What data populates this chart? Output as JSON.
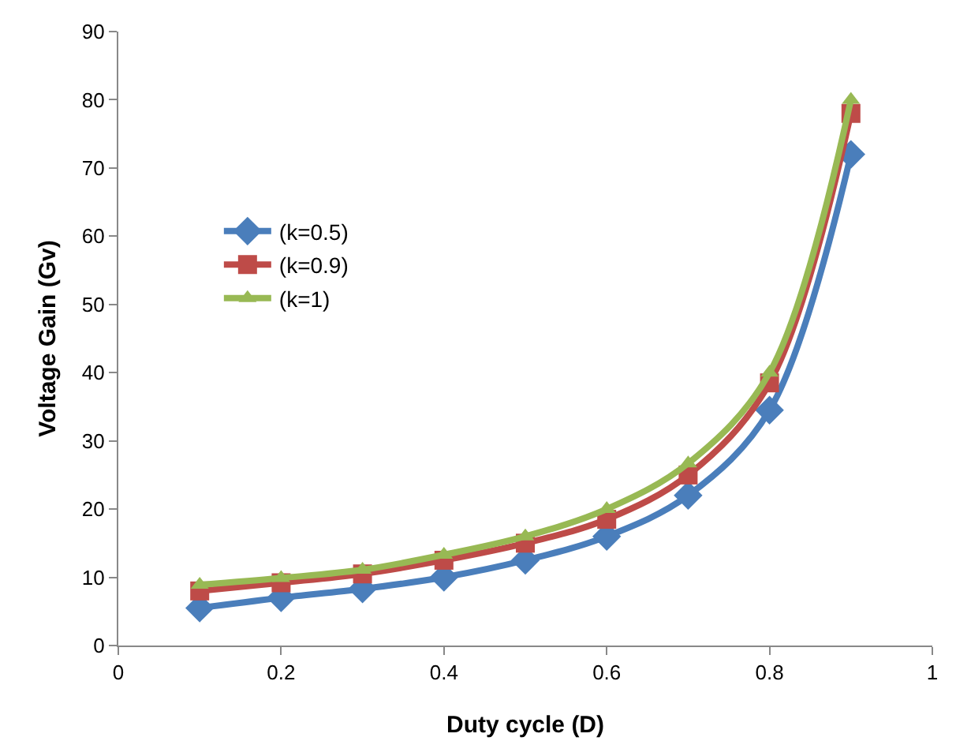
{
  "chart_data": {
    "type": "line",
    "xlabel": "Duty cycle (D)",
    "ylabel": "Voltage Gain (Gv)",
    "x": [
      0.1,
      0.2,
      0.3,
      0.4,
      0.5,
      0.6,
      0.7,
      0.8,
      0.9
    ],
    "xlim": [
      0,
      1
    ],
    "xticks": [
      0,
      0.2,
      0.4,
      0.6,
      0.8,
      1
    ],
    "ylim": [
      0,
      90
    ],
    "yticks": [
      0,
      10,
      20,
      30,
      40,
      50,
      60,
      70,
      80,
      90
    ],
    "grid": false,
    "legend": "left",
    "line_style": "solid",
    "series": [
      {
        "name": "(k=0.5)",
        "color": "#4a7ebb",
        "marker": "diamond",
        "values": [
          5.5,
          7,
          8.3,
          10,
          12.5,
          16,
          22,
          34.5,
          72
        ]
      },
      {
        "name": "(k=0.9)",
        "color": "#be4b48",
        "marker": "square",
        "values": [
          8,
          9.2,
          10.5,
          12.5,
          15,
          18.5,
          25,
          38.5,
          78
        ]
      },
      {
        "name": "(k=1)",
        "color": "#98b954",
        "marker": "triangle",
        "values": [
          8.9,
          9.9,
          11.1,
          13.3,
          16,
          20,
          26.7,
          40,
          80
        ]
      }
    ]
  }
}
